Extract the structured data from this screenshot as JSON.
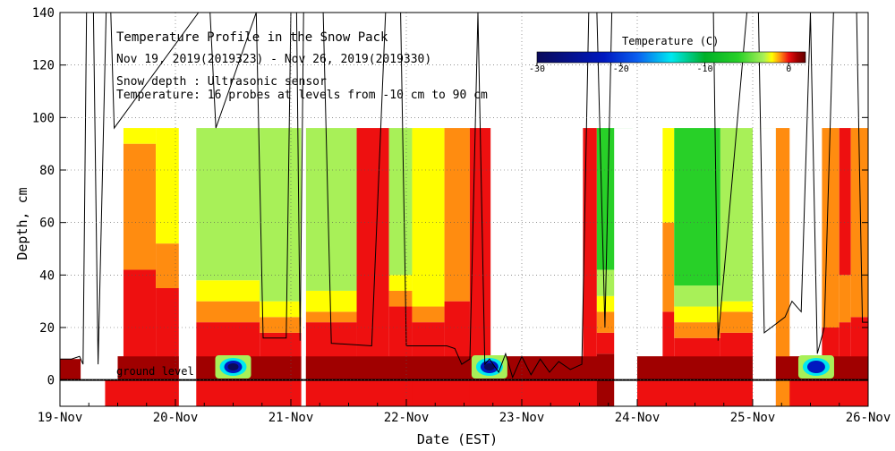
{
  "chart_data": {
    "type": "heatmap",
    "title": "Temperature Profile in the Snow Pack",
    "subtitle": "Nov 19, 2019(2019323) - Nov 26, 2019(2019330)",
    "notes": [
      "Snow depth : Ultrasonic sensor",
      "Temperature: 16 probes at levels from -10 cm to 90 cm"
    ],
    "ground_label": "ground level",
    "xlabel": "Date (EST)",
    "ylabel": "Depth, cm",
    "x_ticks": [
      "19-Nov",
      "20-Nov",
      "21-Nov",
      "22-Nov",
      "23-Nov",
      "24-Nov",
      "25-Nov",
      "26-Nov"
    ],
    "y_ticks": [
      0,
      20,
      40,
      60,
      80,
      100,
      120,
      140
    ],
    "xlim_days": [
      0,
      7
    ],
    "ylim": [
      -10,
      140
    ],
    "grid": true,
    "colorbar": {
      "title": "Temperature (C)",
      "ticks": [
        -30,
        -20,
        -10,
        0
      ],
      "range": [
        -30,
        2
      ],
      "stops": [
        {
          "t": -30,
          "color": "#0a0a5a"
        },
        {
          "t": -22,
          "color": "#0018c0"
        },
        {
          "t": -18,
          "color": "#0a60f0"
        },
        {
          "t": -14,
          "color": "#00e8f0"
        },
        {
          "t": -10,
          "color": "#00b028"
        },
        {
          "t": -6,
          "color": "#28d028"
        },
        {
          "t": -3,
          "color": "#a8f058"
        },
        {
          "t": -2,
          "color": "#ffff00"
        },
        {
          "t": -1,
          "color": "#ff8c10"
        },
        {
          "t": 0,
          "color": "#ee1010"
        },
        {
          "t": 1,
          "color": "#a00000"
        },
        {
          "t": 2,
          "color": "#620000"
        }
      ]
    },
    "profile_segments": [
      {
        "from": 0.55,
        "to": 0.83,
        "layers": [
          {
            "bottom": -10,
            "top": 42,
            "t": 0
          },
          {
            "bottom": 42,
            "top": 90,
            "t": -1
          },
          {
            "bottom": 90,
            "top": 96,
            "t": -2
          }
        ]
      },
      {
        "from": 0.83,
        "to": 1.03,
        "layers": [
          {
            "bottom": -10,
            "top": 35,
            "t": 0
          },
          {
            "bottom": 35,
            "top": 52,
            "t": -1
          },
          {
            "bottom": 52,
            "top": 96,
            "t": -2
          }
        ]
      },
      {
        "from": 1.18,
        "to": 1.73,
        "layers": [
          {
            "bottom": -10,
            "top": 22,
            "t": 0
          },
          {
            "bottom": 22,
            "top": 30,
            "t": -1
          },
          {
            "bottom": 30,
            "top": 38,
            "t": -2
          },
          {
            "bottom": 38,
            "top": 96,
            "t": -3
          }
        ]
      },
      {
        "from": 1.73,
        "to": 2.09,
        "layers": [
          {
            "bottom": -10,
            "top": 18,
            "t": 0
          },
          {
            "bottom": 18,
            "top": 24,
            "t": -1
          },
          {
            "bottom": 24,
            "top": 30,
            "t": -2
          },
          {
            "bottom": 30,
            "top": 96,
            "t": -3
          }
        ]
      },
      {
        "from": 2.13,
        "to": 2.57,
        "layers": [
          {
            "bottom": -10,
            "top": 22,
            "t": 0
          },
          {
            "bottom": 22,
            "top": 26,
            "t": -1
          },
          {
            "bottom": 26,
            "top": 34,
            "t": -2
          },
          {
            "bottom": 34,
            "top": 96,
            "t": -3
          }
        ]
      },
      {
        "from": 2.57,
        "to": 2.85,
        "layers": [
          {
            "bottom": -10,
            "top": 96,
            "t": 0
          }
        ]
      },
      {
        "from": 2.85,
        "to": 3.05,
        "layers": [
          {
            "bottom": -10,
            "top": 28,
            "t": 0
          },
          {
            "bottom": 28,
            "top": 34,
            "t": -1
          },
          {
            "bottom": 34,
            "top": 40,
            "t": -2
          },
          {
            "bottom": 40,
            "top": 96,
            "t": -3
          }
        ]
      },
      {
        "from": 3.05,
        "to": 3.33,
        "layers": [
          {
            "bottom": -10,
            "top": 22,
            "t": 0
          },
          {
            "bottom": 22,
            "top": 28,
            "t": -1
          },
          {
            "bottom": 28,
            "top": 96,
            "t": -2
          }
        ]
      },
      {
        "from": 3.33,
        "to": 3.55,
        "layers": [
          {
            "bottom": -10,
            "top": 30,
            "t": 0
          },
          {
            "bottom": 30,
            "top": 96,
            "t": -1
          }
        ]
      },
      {
        "from": 3.55,
        "to": 3.73,
        "layers": [
          {
            "bottom": -10,
            "top": 96,
            "t": 0
          }
        ]
      },
      {
        "from": 4.53,
        "to": 4.65,
        "layers": [
          {
            "bottom": -10,
            "top": 96,
            "t": 0
          }
        ]
      },
      {
        "from": 4.65,
        "to": 4.96,
        "layers": [
          {
            "bottom": -10,
            "top": 10,
            "t": 1
          },
          {
            "bottom": 10,
            "top": 18,
            "t": 0
          },
          {
            "bottom": 18,
            "top": 26,
            "t": -1
          },
          {
            "bottom": 26,
            "top": 32,
            "t": -2
          },
          {
            "bottom": 32,
            "top": 42,
            "t": -3
          },
          {
            "bottom": 42,
            "top": 96,
            "t": -6
          }
        ]
      },
      {
        "from": 5.22,
        "to": 5.32,
        "layers": [
          {
            "bottom": -10,
            "top": 26,
            "t": 0
          },
          {
            "bottom": 26,
            "top": 60,
            "t": -1
          },
          {
            "bottom": 60,
            "top": 96,
            "t": -2
          }
        ]
      },
      {
        "from": 5.32,
        "to": 5.72,
        "layers": [
          {
            "bottom": -10,
            "top": 16,
            "t": 0
          },
          {
            "bottom": 16,
            "top": 22,
            "t": -1
          },
          {
            "bottom": 22,
            "top": 28,
            "t": -2
          },
          {
            "bottom": 28,
            "top": 36,
            "t": -3
          },
          {
            "bottom": 36,
            "top": 96,
            "t": -6
          }
        ]
      },
      {
        "from": 5.72,
        "to": 6.2,
        "layers": [
          {
            "bottom": -10,
            "top": 18,
            "t": 0
          },
          {
            "bottom": 18,
            "top": 26,
            "t": -1
          },
          {
            "bottom": 26,
            "top": 30,
            "t": -2
          },
          {
            "bottom": 30,
            "top": 96,
            "t": -3
          }
        ]
      },
      {
        "from": 6.2,
        "to": 6.32,
        "layers": [
          {
            "bottom": -10,
            "top": 96,
            "t": -1
          }
        ]
      },
      {
        "from": 6.6,
        "to": 6.75,
        "layers": [
          {
            "bottom": -10,
            "top": 20,
            "t": 0
          },
          {
            "bottom": 20,
            "top": 96,
            "t": -1
          }
        ]
      },
      {
        "from": 6.75,
        "to": 6.85,
        "layers": [
          {
            "bottom": -10,
            "top": 22,
            "t": 0
          },
          {
            "bottom": 22,
            "top": 40,
            "t": -1
          },
          {
            "bottom": 40,
            "top": 96,
            "t": 0
          }
        ]
      },
      {
        "from": 6.85,
        "to": 7.0,
        "layers": [
          {
            "bottom": -10,
            "top": 24,
            "t": 0
          },
          {
            "bottom": 24,
            "top": 96,
            "t": -1
          }
        ]
      }
    ],
    "ground_segments": [
      {
        "from": 0.0,
        "to": 0.18,
        "layers": [
          {
            "bottom": 0,
            "top": 8,
            "t": 1
          }
        ]
      },
      {
        "from": 0.39,
        "to": 1.03,
        "layers": [
          {
            "bottom": -10,
            "top": 0,
            "t": 0
          }
        ]
      },
      {
        "from": 1.18,
        "to": 4.65,
        "layers": [
          {
            "bottom": -10,
            "top": 0,
            "t": 0
          }
        ]
      },
      {
        "from": 4.65,
        "to": 4.8,
        "layers": [
          {
            "bottom": -10,
            "top": 0,
            "t": 0
          }
        ]
      },
      {
        "from": 5.0,
        "to": 6.0,
        "layers": [
          {
            "bottom": -10,
            "top": 0,
            "t": 0
          }
        ]
      },
      {
        "from": 6.2,
        "to": 7.0,
        "layers": [
          {
            "bottom": -10,
            "top": 0,
            "t": 0
          }
        ]
      },
      {
        "from": 0.5,
        "to": 4.8,
        "layers": [
          {
            "bottom": 0,
            "top": 9,
            "t": 1
          }
        ]
      },
      {
        "from": 5.0,
        "to": 7.0,
        "layers": [
          {
            "bottom": 0,
            "top": 9,
            "t": 1
          }
        ]
      }
    ],
    "cold_spots": [
      {
        "x": 1.5,
        "y": 5,
        "t": -26
      },
      {
        "x": 3.72,
        "y": 5,
        "t": -28
      },
      {
        "x": 6.55,
        "y": 5,
        "t": -24
      }
    ],
    "data_gaps": [
      {
        "from": 0.18,
        "to": 0.39
      },
      {
        "from": 1.03,
        "to": 1.18
      },
      {
        "from": 2.09,
        "to": 2.13
      },
      {
        "from": 4.8,
        "to": 5.0
      },
      {
        "from": 6.0,
        "to": 6.2
      }
    ],
    "snow_depth": [
      {
        "x": 0.0,
        "y": 8
      },
      {
        "x": 0.1,
        "y": 8
      },
      {
        "x": 0.17,
        "y": 9
      },
      {
        "x": 0.2,
        "y": 6
      },
      {
        "x": 0.23,
        "y": 140
      },
      {
        "x": 0.29,
        "y": 140
      },
      {
        "x": 0.33,
        "y": 6
      },
      {
        "x": 0.4,
        "y": 140
      },
      {
        "x": 0.44,
        "y": 140
      },
      {
        "x": 0.47,
        "y": 96
      },
      {
        "x": 1.2,
        "y": 140
      },
      {
        "x": 1.3,
        "y": 140
      },
      {
        "x": 1.35,
        "y": 96
      },
      {
        "x": 1.7,
        "y": 140
      },
      {
        "x": 1.76,
        "y": 16
      },
      {
        "x": 1.96,
        "y": 16
      },
      {
        "x": 2.0,
        "y": 140
      },
      {
        "x": 2.05,
        "y": 140
      },
      {
        "x": 2.08,
        "y": 15
      },
      {
        "x": 2.11,
        "y": 140
      },
      {
        "x": 2.28,
        "y": 140
      },
      {
        "x": 2.35,
        "y": 14
      },
      {
        "x": 2.7,
        "y": 13
      },
      {
        "x": 2.82,
        "y": 140
      },
      {
        "x": 2.95,
        "y": 140
      },
      {
        "x": 3.0,
        "y": 13
      },
      {
        "x": 3.35,
        "y": 13
      },
      {
        "x": 3.42,
        "y": 12
      },
      {
        "x": 3.48,
        "y": 6
      },
      {
        "x": 3.55,
        "y": 8
      },
      {
        "x": 3.62,
        "y": 140
      },
      {
        "x": 3.68,
        "y": 6
      },
      {
        "x": 3.72,
        "y": 8
      },
      {
        "x": 3.8,
        "y": 3
      },
      {
        "x": 3.86,
        "y": 10
      },
      {
        "x": 3.92,
        "y": 1
      },
      {
        "x": 4.0,
        "y": 9
      },
      {
        "x": 4.08,
        "y": 2
      },
      {
        "x": 4.16,
        "y": 8
      },
      {
        "x": 4.24,
        "y": 3
      },
      {
        "x": 4.32,
        "y": 7
      },
      {
        "x": 4.42,
        "y": 4
      },
      {
        "x": 4.52,
        "y": 6
      },
      {
        "x": 4.58,
        "y": 140
      },
      {
        "x": 4.65,
        "y": 140
      },
      {
        "x": 4.72,
        "y": 20
      },
      {
        "x": 4.78,
        "y": 140
      },
      {
        "x": 4.86,
        "y": 140
      },
      {
        "x": 4.9,
        "y": 140
      },
      {
        "x": 5.02,
        "y": 140
      },
      {
        "x": 5.08,
        "y": 140
      },
      {
        "x": 5.2,
        "y": 140
      },
      {
        "x": 5.35,
        "y": 140
      },
      {
        "x": 5.55,
        "y": 140
      },
      {
        "x": 5.66,
        "y": 140
      },
      {
        "x": 5.7,
        "y": 15
      },
      {
        "x": 5.95,
        "y": 140
      },
      {
        "x": 6.05,
        "y": 140
      },
      {
        "x": 6.1,
        "y": 18
      },
      {
        "x": 6.28,
        "y": 24
      },
      {
        "x": 6.34,
        "y": 30
      },
      {
        "x": 6.42,
        "y": 26
      },
      {
        "x": 6.5,
        "y": 140
      },
      {
        "x": 6.56,
        "y": 10
      },
      {
        "x": 6.62,
        "y": 20
      },
      {
        "x": 6.7,
        "y": 140
      },
      {
        "x": 6.8,
        "y": 140
      },
      {
        "x": 6.9,
        "y": 140
      },
      {
        "x": 6.95,
        "y": 22
      },
      {
        "x": 7.0,
        "y": 22
      }
    ]
  }
}
